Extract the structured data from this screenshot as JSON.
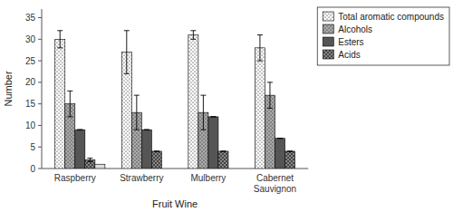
{
  "chart_data": {
    "type": "bar",
    "categories": [
      "Raspberry",
      "Strawberry",
      "Mulberry",
      "Cabernet\nSauvignon"
    ],
    "series": [
      {
        "name": "Total aromatic compounds",
        "color": "#ffffff",
        "values": [
          30,
          27,
          31,
          28
        ],
        "errors": [
          2,
          5,
          1,
          3
        ]
      },
      {
        "name": "Alcohols",
        "color": "#aaaaaa",
        "values": [
          15,
          13,
          13,
          17
        ],
        "errors": [
          3,
          4,
          4,
          3
        ]
      },
      {
        "name": "Esters",
        "color": "#555555",
        "values": [
          9,
          9,
          12,
          7
        ],
        "errors": [
          0,
          0,
          0,
          0
        ]
      },
      {
        "name": "Acids",
        "color": "#888888",
        "values": [
          2,
          4,
          4,
          4
        ],
        "errors": [
          0.4,
          0,
          0,
          0
        ]
      },
      {
        "color": "#dddddd",
        "values": [
          1,
          null,
          null,
          null
        ]
      }
    ],
    "xlabel": "Fruit Wine",
    "ylabel": "Number",
    "ylim": [
      0,
      37
    ],
    "yticks": [
      0,
      5,
      10,
      15,
      20,
      25,
      30,
      35
    ],
    "legend": "upper right",
    "grid": false
  }
}
